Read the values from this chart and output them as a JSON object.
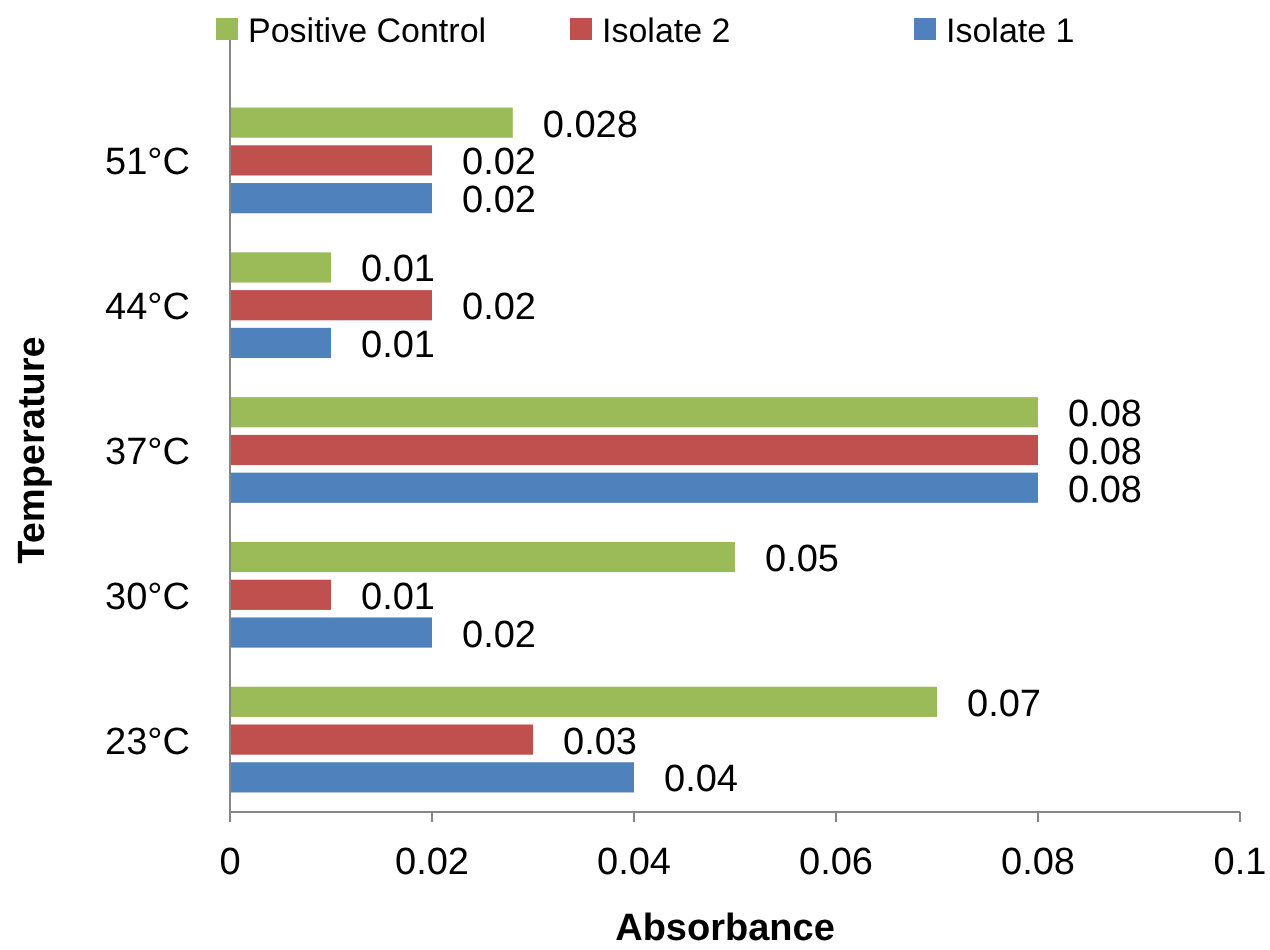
{
  "chart_data": {
    "type": "bar",
    "orientation": "horizontal",
    "xlabel": "Absorbance",
    "ylabel": "Temperature",
    "categories": [
      "51°C",
      "44°C",
      "37°C",
      "30°C",
      "23°C"
    ],
    "series": [
      {
        "name": "Positive Control",
        "color": "#9bbb59",
        "values": [
          0.028,
          0.01,
          0.08,
          0.05,
          0.07
        ]
      },
      {
        "name": "Isolate 2",
        "color": "#c0504d",
        "values": [
          0.02,
          0.02,
          0.08,
          0.01,
          0.03
        ]
      },
      {
        "name": "Isolate 1",
        "color": "#4f81bd",
        "values": [
          0.02,
          0.01,
          0.08,
          0.02,
          0.04
        ]
      }
    ],
    "xlim": [
      0,
      0.1
    ],
    "xticks": [
      0,
      0.02,
      0.04,
      0.06,
      0.08,
      0.1
    ],
    "data_labels": true,
    "legend": "top",
    "grid": false
  }
}
